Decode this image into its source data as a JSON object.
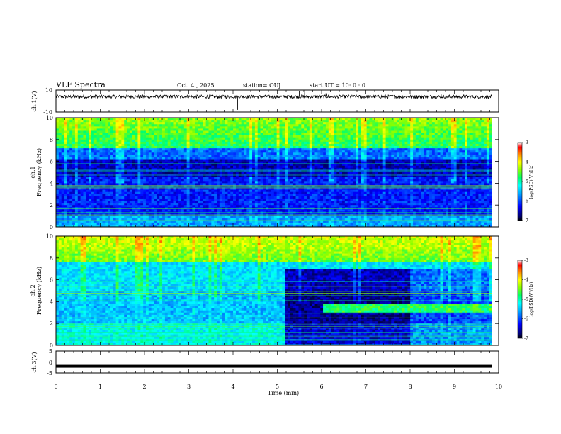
{
  "header": {
    "title": "VLF Spectra",
    "date": "Oct. 4 , 2025",
    "station": "station= OUJ",
    "start": "start UT = 10: 0 : 0"
  },
  "chart_data": [
    {
      "type": "line",
      "name": "ch1-waveform",
      "ylabel": "ch.1(V)",
      "ylim": [
        -10,
        10
      ],
      "yticks": [
        "10",
        "-10"
      ],
      "baseline_value": 4,
      "spikes": [
        {
          "x": 4.1,
          "y": -8
        },
        {
          "x": 5.5,
          "y": 9
        },
        {
          "x": 5.62,
          "y": 8
        },
        {
          "x": 6.1,
          "y": 7
        },
        {
          "x": 8.7,
          "y": 6
        },
        {
          "x": 9.2,
          "y": 6
        }
      ]
    },
    {
      "type": "heatmap",
      "name": "ch1-spectrogram",
      "ylabel": "Frequency (kHz)",
      "channel_label": "ch.1",
      "ylim": [
        0,
        10
      ],
      "yticks": [
        "0",
        "2",
        "4",
        "6",
        "8",
        "10"
      ],
      "colorbar": {
        "label": "log(PSD)(V²/Hz)",
        "range": [
          -7,
          -3
        ],
        "ticks": [
          "-3",
          "-4",
          "-5",
          "-6",
          "-7"
        ]
      }
    },
    {
      "type": "heatmap",
      "name": "ch2-spectrogram",
      "ylabel": "Frequency (kHz)",
      "channel_label": "ch.2",
      "ylim": [
        0,
        10
      ],
      "yticks": [
        "0",
        "2",
        "4",
        "6",
        "8",
        "10"
      ],
      "colorbar": {
        "label": "log(PSD)(V²/Hz)",
        "range": [
          -7,
          -3
        ],
        "ticks": [
          "-3",
          "-4",
          "-5",
          "-6",
          "-7"
        ]
      }
    },
    {
      "type": "line",
      "name": "ch3-waveform",
      "ylabel": "ch.3(V)",
      "ylim": [
        -5,
        5
      ],
      "yticks": [
        "5",
        "0",
        "-5"
      ],
      "baseline_value": -1.8
    }
  ],
  "xaxis": {
    "label": "Time (min)",
    "range": [
      0,
      10
    ],
    "ticks": [
      "0",
      "1",
      "2",
      "3",
      "4",
      "5",
      "6",
      "7",
      "8",
      "9",
      "10"
    ]
  },
  "colors": {
    "background": "#ffffff",
    "colormap": [
      "#000066",
      "#0000ff",
      "#00aaff",
      "#00ffff",
      "#00ff88",
      "#88ff00",
      "#ffff00",
      "#ff8800",
      "#ff0000",
      "#ffffff"
    ]
  }
}
